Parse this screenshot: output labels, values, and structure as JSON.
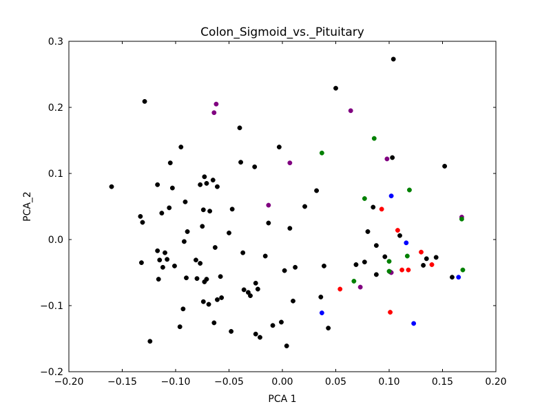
{
  "chart_data": {
    "type": "scatter",
    "title": "Colon_Sigmoid_vs._Pituitary",
    "xlabel": "PCA 1",
    "ylabel": "PCA_2",
    "xlim": [
      -0.2,
      0.2
    ],
    "ylim": [
      -0.2,
      0.3
    ],
    "xticks": [
      -0.2,
      -0.15,
      -0.1,
      -0.05,
      0.0,
      0.05,
      0.1,
      0.15,
      0.2
    ],
    "yticks": [
      -0.2,
      -0.1,
      0.0,
      0.1,
      0.2,
      0.3
    ],
    "xtick_labels": [
      "−0.20",
      "−0.15",
      "−0.10",
      "−0.05",
      "0.00",
      "0.05",
      "0.10",
      "0.15",
      "0.20"
    ],
    "ytick_labels": [
      "−0.2",
      "−0.1",
      "0.0",
      "0.1",
      "0.2",
      "0.3"
    ],
    "grid": false,
    "series": [
      {
        "color": "#000000",
        "points": [
          [
            -0.16,
            0.08
          ],
          [
            -0.129,
            0.209
          ],
          [
            -0.133,
            0.035
          ],
          [
            -0.131,
            0.026
          ],
          [
            -0.132,
            -0.035
          ],
          [
            -0.124,
            -0.154
          ],
          [
            -0.117,
            0.083
          ],
          [
            -0.117,
            -0.017
          ],
          [
            -0.115,
            -0.031
          ],
          [
            -0.116,
            -0.06
          ],
          [
            -0.113,
            0.04
          ],
          [
            -0.112,
            -0.042
          ],
          [
            -0.11,
            -0.02
          ],
          [
            -0.108,
            -0.03
          ],
          [
            -0.106,
            0.048
          ],
          [
            -0.105,
            0.116
          ],
          [
            -0.103,
            0.078
          ],
          [
            -0.101,
            -0.04
          ],
          [
            -0.095,
            0.14
          ],
          [
            -0.096,
            -0.132
          ],
          [
            -0.093,
            -0.105
          ],
          [
            -0.092,
            -0.003
          ],
          [
            -0.091,
            0.057
          ],
          [
            -0.09,
            -0.058
          ],
          [
            -0.089,
            0.012
          ],
          [
            -0.081,
            -0.031
          ],
          [
            -0.08,
            -0.059
          ],
          [
            -0.077,
            -0.036
          ],
          [
            -0.077,
            0.083
          ],
          [
            -0.075,
            0.02
          ],
          [
            -0.074,
            0.045
          ],
          [
            -0.074,
            -0.094
          ],
          [
            -0.073,
            0.095
          ],
          [
            -0.073,
            -0.064
          ],
          [
            -0.071,
            0.085
          ],
          [
            -0.071,
            -0.06
          ],
          [
            -0.069,
            -0.098
          ],
          [
            -0.068,
            0.043
          ],
          [
            -0.065,
            0.09
          ],
          [
            -0.064,
            -0.126
          ],
          [
            -0.063,
            -0.012
          ],
          [
            -0.061,
            0.08
          ],
          [
            -0.061,
            -0.091
          ],
          [
            -0.058,
            -0.056
          ],
          [
            -0.057,
            -0.088
          ],
          [
            -0.05,
            0.01
          ],
          [
            -0.048,
            -0.139
          ],
          [
            -0.047,
            0.046
          ],
          [
            -0.04,
            0.169
          ],
          [
            -0.039,
            0.117
          ],
          [
            -0.037,
            -0.02
          ],
          [
            -0.036,
            -0.076
          ],
          [
            -0.032,
            -0.08
          ],
          [
            -0.03,
            -0.085
          ],
          [
            -0.026,
            0.11
          ],
          [
            -0.025,
            -0.066
          ],
          [
            -0.025,
            -0.143
          ],
          [
            -0.023,
            -0.075
          ],
          [
            -0.021,
            -0.148
          ],
          [
            -0.016,
            -0.025
          ],
          [
            -0.013,
            0.025
          ],
          [
            -0.009,
            -0.13
          ],
          [
            -0.003,
            0.14
          ],
          [
            -0.001,
            -0.125
          ],
          [
            0.002,
            -0.047
          ],
          [
            0.004,
            -0.161
          ],
          [
            0.007,
            0.017
          ],
          [
            0.01,
            -0.093
          ],
          [
            0.012,
            -0.042
          ],
          [
            0.021,
            0.05
          ],
          [
            0.032,
            0.074
          ],
          [
            0.036,
            -0.087
          ],
          [
            0.039,
            -0.04
          ],
          [
            0.043,
            -0.134
          ],
          [
            0.05,
            0.229
          ],
          [
            0.069,
            -0.038
          ],
          [
            0.077,
            -0.034
          ],
          [
            0.08,
            0.012
          ],
          [
            0.085,
            0.049
          ],
          [
            0.088,
            -0.009
          ],
          [
            0.088,
            -0.053
          ],
          [
            0.096,
            -0.026
          ],
          [
            0.101,
            -0.049
          ],
          [
            0.103,
            0.124
          ],
          [
            0.104,
            0.273
          ],
          [
            0.11,
            0.006
          ],
          [
            0.132,
            -0.039
          ],
          [
            0.135,
            -0.029
          ],
          [
            0.144,
            -0.027
          ],
          [
            0.152,
            0.111
          ],
          [
            0.159,
            -0.057
          ]
        ]
      },
      {
        "color": "#800080",
        "points": [
          [
            -0.062,
            0.205
          ],
          [
            -0.064,
            0.192
          ],
          [
            0.064,
            0.195
          ],
          [
            0.007,
            0.116
          ],
          [
            -0.013,
            0.052
          ],
          [
            0.098,
            0.122
          ],
          [
            0.073,
            -0.072
          ],
          [
            0.102,
            -0.05
          ],
          [
            0.168,
            0.034
          ]
        ]
      },
      {
        "color": "#008000",
        "points": [
          [
            0.037,
            0.131
          ],
          [
            0.086,
            0.153
          ],
          [
            0.077,
            0.062
          ],
          [
            0.119,
            0.075
          ],
          [
            0.1,
            -0.033
          ],
          [
            0.117,
            -0.025
          ],
          [
            0.067,
            -0.063
          ],
          [
            0.1,
            -0.048
          ],
          [
            0.168,
            0.031
          ],
          [
            0.169,
            -0.046
          ]
        ]
      },
      {
        "color": "#0000ff",
        "points": [
          [
            0.102,
            0.066
          ],
          [
            0.116,
            -0.005
          ],
          [
            0.165,
            -0.057
          ],
          [
            0.037,
            -0.111
          ],
          [
            0.123,
            -0.127
          ]
        ]
      },
      {
        "color": "#ff0000",
        "points": [
          [
            0.093,
            0.046
          ],
          [
            0.108,
            0.014
          ],
          [
            0.13,
            -0.019
          ],
          [
            0.14,
            -0.038
          ],
          [
            0.112,
            -0.046
          ],
          [
            0.118,
            -0.046
          ],
          [
            0.054,
            -0.075
          ],
          [
            0.101,
            -0.11
          ]
        ]
      }
    ]
  }
}
